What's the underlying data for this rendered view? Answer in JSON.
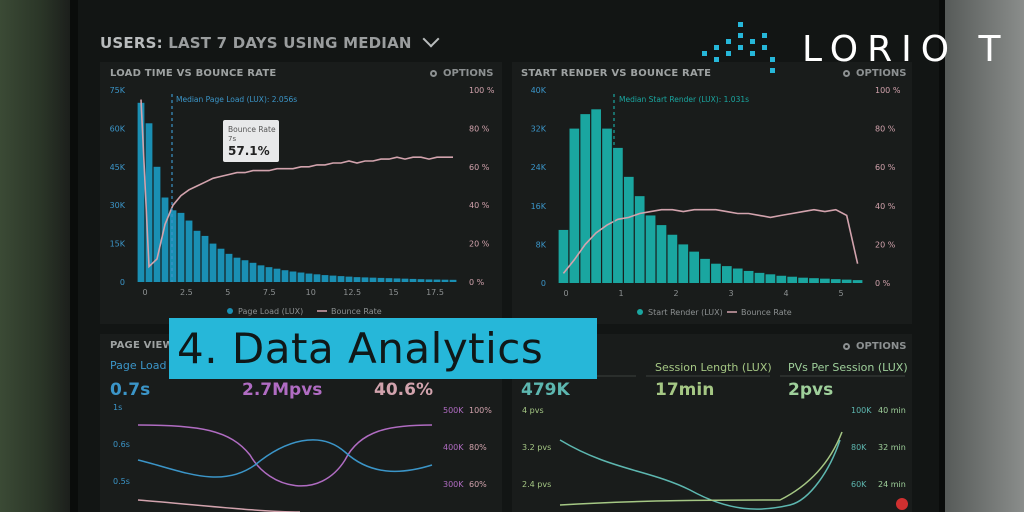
{
  "header": {
    "title_prefix": "USERS:",
    "title_main": "LAST 7 DAYS USING MEDIAN"
  },
  "logo": {
    "text": "LORIO T"
  },
  "banner": {
    "text": "4. Data Analytics"
  },
  "options_label": "OPTIONS",
  "colors": {
    "bar": "#1a8fb3",
    "bar2": "#1aa6a0",
    "line": "#d2a3ad",
    "accent": "#26b7d9"
  },
  "chart_data": [
    {
      "type": "bar",
      "title": "LOAD TIME VS BOUNCE RATE",
      "annotation": "Median Page Load (LUX): 2.056s",
      "tooltip": {
        "title": "Bounce Rate",
        "sub": "7s",
        "value": "57.1%"
      },
      "yticks_left": [
        "75K",
        "60K",
        "45K",
        "30K",
        "15K",
        "0"
      ],
      "yticks_right": [
        "100 %",
        "80 %",
        "60 %",
        "40 %",
        "20 %",
        "0 %"
      ],
      "xticks": [
        "0",
        "2.5",
        "5",
        "7.5",
        "10",
        "12.5",
        "15",
        "17.5"
      ],
      "ylim": [
        0,
        75000
      ],
      "values": [
        70000,
        62000,
        45000,
        33000,
        28000,
        27000,
        24000,
        20000,
        18000,
        15000,
        13000,
        11000,
        9500,
        8500,
        7500,
        6500,
        5800,
        5200,
        4600,
        4100,
        3700,
        3300,
        3000,
        2700,
        2500,
        2300,
        2100,
        1900,
        1800,
        1700,
        1600,
        1500,
        1400,
        1300,
        1200,
        1100,
        1000,
        950,
        900,
        850
      ],
      "series": [
        {
          "name": "Page Load (LUX)"
        },
        {
          "name": "Bounce Rate",
          "values": [
            95,
            8,
            12,
            30,
            40,
            45,
            48,
            50,
            52,
            54,
            55,
            56,
            57,
            57,
            58,
            58,
            58,
            59,
            59,
            59,
            60,
            60,
            61,
            61,
            62,
            62,
            63,
            62,
            63,
            63,
            64,
            64,
            65,
            64,
            65,
            65,
            64,
            65,
            65,
            65
          ]
        }
      ]
    },
    {
      "type": "bar",
      "title": "START RENDER VS BOUNCE RATE",
      "annotation": "Median Start Render (LUX): 1.031s",
      "yticks_left": [
        "40K",
        "32K",
        "24K",
        "16K",
        "8K",
        "0"
      ],
      "yticks_right": [
        "100 %",
        "80 %",
        "60 %",
        "40 %",
        "20 %",
        "0 %"
      ],
      "xticks": [
        "0",
        "1",
        "2",
        "3",
        "4",
        "5"
      ],
      "ylim": [
        0,
        40000
      ],
      "values": [
        11000,
        32000,
        35000,
        36000,
        32000,
        28000,
        22000,
        18000,
        14000,
        12000,
        10000,
        8000,
        6500,
        5000,
        4000,
        3500,
        3000,
        2500,
        2100,
        1800,
        1500,
        1300,
        1100,
        1000,
        900,
        800,
        700,
        600
      ],
      "series": [
        {
          "name": "Start Render (LUX)"
        },
        {
          "name": "Bounce Rate",
          "values": [
            5,
            12,
            20,
            26,
            30,
            33,
            34,
            36,
            37,
            38,
            38,
            37,
            38,
            38,
            38,
            37,
            36,
            36,
            35,
            34,
            35,
            36,
            37,
            38,
            37,
            38,
            35,
            10
          ]
        }
      ]
    }
  ],
  "bottom": {
    "left_title": "PAGE VIEWS",
    "metrics_left": [
      {
        "label": "Page Load (LUX)",
        "value": "0.7s",
        "color": "#3b95c8"
      },
      {
        "label": "",
        "value": "2.7Mpvs",
        "color": "#b06cc2"
      },
      {
        "label": "",
        "value": "40.6%",
        "color": "#d2a3ad"
      }
    ],
    "metrics_right": [
      {
        "label": "",
        "value": "479K",
        "color": "#5db7b0"
      },
      {
        "label": "Session Length (LUX)",
        "value": "17min",
        "color": "#a5c784"
      },
      {
        "label": "PVs Per Session (LUX)",
        "value": "2pvs",
        "color": "#9fd09b"
      }
    ],
    "left_axis": [
      "1s",
      "0.6s",
      "0.5s"
    ],
    "mid_axis_a": [
      "500K",
      "400K",
      "300K"
    ],
    "mid_axis_b": [
      "100%",
      "80%",
      "60%"
    ],
    "right_axis_a": [
      "4 pvs",
      "3.2 pvs",
      "2.4 pvs"
    ],
    "right_axis_b": [
      "100K",
      "80K",
      "60K"
    ],
    "right_axis_c": [
      "40 min",
      "32 min",
      "24 min"
    ]
  }
}
